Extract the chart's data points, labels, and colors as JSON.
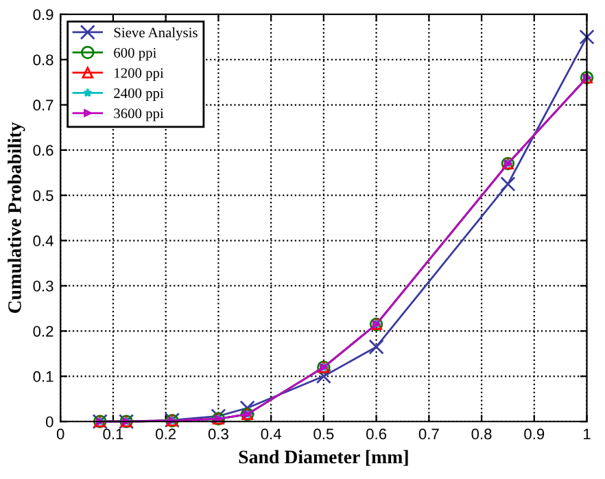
{
  "chart_data": {
    "type": "line",
    "xlabel": "Sand Diameter [mm]",
    "ylabel": "Cumulative Probability",
    "x": [
      0.075,
      0.125,
      0.212,
      0.3,
      0.355,
      0.5,
      0.6,
      0.85,
      1.0
    ],
    "series": [
      {
        "name": "Sieve Analysis",
        "color": "#3a3aa0",
        "marker": "cross",
        "values": [
          0,
          0,
          0.003,
          0.012,
          0.03,
          0.1,
          0.165,
          0.525,
          0.85
        ]
      },
      {
        "name": "600 ppi",
        "color": "#008000",
        "marker": "circle",
        "values": [
          0,
          0,
          0.002,
          0.006,
          0.016,
          0.12,
          0.215,
          0.57,
          0.76
        ]
      },
      {
        "name": "1200 ppi",
        "color": "#ff0000",
        "marker": "triangle",
        "values": [
          0,
          0,
          0.002,
          0.006,
          0.016,
          0.12,
          0.215,
          0.57,
          0.76
        ]
      },
      {
        "name": "2400 ppi",
        "color": "#00bfbf",
        "marker": "star",
        "values": [
          0,
          0,
          0.002,
          0.006,
          0.016,
          0.12,
          0.215,
          0.57,
          0.76
        ]
      },
      {
        "name": "3600 ppi",
        "color": "#bf00bf",
        "marker": "triangle_right",
        "values": [
          0,
          0,
          0.002,
          0.006,
          0.016,
          0.12,
          0.215,
          0.57,
          0.76
        ]
      }
    ],
    "xlim": [
      0,
      1
    ],
    "xticks": [
      0,
      0.1,
      0.2,
      0.3,
      0.4,
      0.5,
      0.6,
      0.7,
      0.8,
      0.9,
      1
    ],
    "ylim": [
      0,
      0.9
    ],
    "yticks": [
      0,
      0.1,
      0.2,
      0.3,
      0.4,
      0.5,
      0.6,
      0.7,
      0.8,
      0.9
    ],
    "grid": true,
    "legend": "top left",
    "line_style": "solid"
  }
}
